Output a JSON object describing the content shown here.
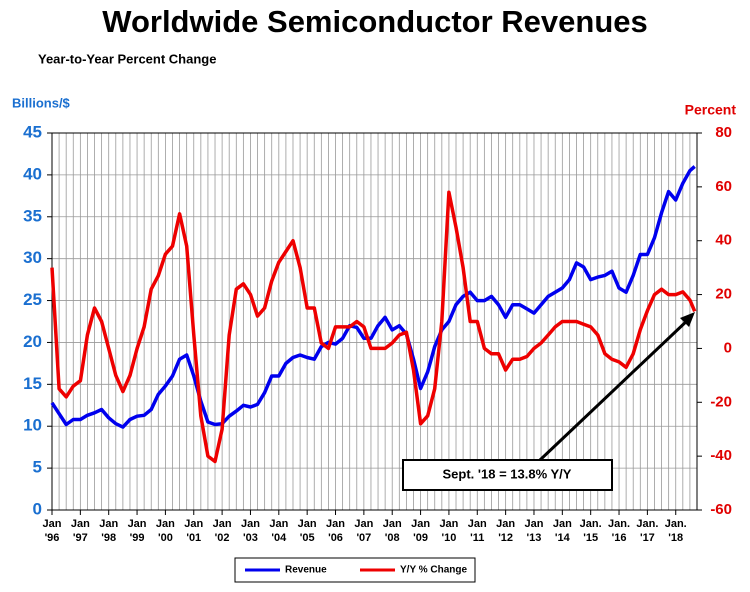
{
  "chart_data": {
    "type": "line",
    "title": "Worldwide Semiconductor Revenues",
    "subtitle": "Year-to-Year Percent Change",
    "y_label": "Billions/$",
    "y2_label": "Percent",
    "annotation": "Sept. '18 = 13.8% Y/Y",
    "x": [
      1996,
      1996.25,
      1996.5,
      1996.75,
      1997,
      1997.25,
      1997.5,
      1997.75,
      1998,
      1998.25,
      1998.5,
      1998.75,
      1999,
      1999.25,
      1999.5,
      1999.75,
      2000,
      2000.25,
      2000.5,
      2000.75,
      2001,
      2001.25,
      2001.5,
      2001.75,
      2002,
      2002.25,
      2002.5,
      2002.75,
      2003,
      2003.25,
      2003.5,
      2003.75,
      2004,
      2004.25,
      2004.5,
      2004.75,
      2005,
      2005.25,
      2005.5,
      2005.75,
      2006,
      2006.25,
      2006.5,
      2006.75,
      2007,
      2007.25,
      2007.5,
      2007.75,
      2008,
      2008.25,
      2008.5,
      2008.75,
      2009,
      2009.25,
      2009.5,
      2009.75,
      2010,
      2010.25,
      2010.5,
      2010.75,
      2011,
      2011.25,
      2011.5,
      2011.75,
      2012,
      2012.25,
      2012.5,
      2012.75,
      2013,
      2013.25,
      2013.5,
      2013.75,
      2014,
      2014.25,
      2014.5,
      2014.75,
      2015,
      2015.25,
      2015.5,
      2015.75,
      2016,
      2016.25,
      2016.5,
      2016.75,
      2017,
      2017.25,
      2017.5,
      2017.75,
      2018,
      2018.25,
      2018.5,
      2018.67
    ],
    "series": [
      {
        "name": "Revenue",
        "color": "#0000ee",
        "values": [
          12.8,
          11.5,
          10.2,
          10.8,
          10.8,
          11.3,
          11.6,
          12.0,
          11.0,
          10.3,
          9.9,
          10.8,
          11.2,
          11.3,
          12.0,
          13.8,
          14.8,
          16.0,
          18.0,
          18.5,
          16.0,
          13.0,
          10.5,
          10.2,
          10.3,
          11.2,
          11.8,
          12.5,
          12.3,
          12.6,
          14.0,
          16.0,
          16.0,
          17.5,
          18.2,
          18.5,
          18.2,
          18.0,
          19.5,
          20.0,
          19.8,
          20.5,
          22.0,
          21.8,
          20.5,
          20.5,
          22.0,
          23.0,
          21.5,
          22.0,
          21.0,
          18.0,
          14.5,
          16.5,
          19.5,
          21.5,
          22.5,
          24.5,
          25.5,
          26.0,
          25.0,
          25.0,
          25.5,
          24.5,
          23.0,
          24.5,
          24.5,
          24.0,
          23.5,
          24.5,
          25.5,
          26.0,
          26.5,
          27.5,
          29.5,
          29.0,
          27.5,
          27.8,
          28.0,
          28.5,
          26.5,
          26.0,
          28.0,
          30.5,
          30.5,
          32.5,
          35.5,
          38.0,
          37.0,
          39.0,
          40.5,
          41.0
        ]
      },
      {
        "name": "Y/Y % Change",
        "color": "#ee0000",
        "axis": "y2",
        "values": [
          30,
          -15,
          -18,
          -14,
          -12,
          5,
          15,
          10,
          0,
          -10,
          -16,
          -10,
          0,
          8,
          22,
          27,
          35,
          38,
          50,
          38,
          5,
          -25,
          -40,
          -42,
          -30,
          5,
          22,
          24,
          20,
          12,
          15,
          25,
          32,
          36,
          40,
          30,
          15,
          15,
          2,
          0,
          8,
          8,
          8,
          10,
          8,
          0,
          0,
          0,
          2,
          5,
          6,
          -8,
          -28,
          -25,
          -15,
          10,
          58,
          45,
          30,
          10,
          10,
          0,
          -2,
          -2,
          -8,
          -4,
          -4,
          -3,
          0,
          2,
          5,
          8,
          10,
          10,
          10,
          9,
          8,
          5,
          -2,
          -4,
          -5,
          -7,
          -2,
          7,
          14,
          20,
          22,
          20,
          20,
          21,
          18,
          13.8
        ]
      }
    ],
    "xlim": [
      1996,
      2018.75
    ],
    "xticks": [
      {
        "value": 1996,
        "label": "Jan '96"
      },
      {
        "value": 1997,
        "label": "Jan '97"
      },
      {
        "value": 1998,
        "label": "Jan '98"
      },
      {
        "value": 1999,
        "label": "Jan '99"
      },
      {
        "value": 2000,
        "label": "Jan '00"
      },
      {
        "value": 2001,
        "label": "Jan '01"
      },
      {
        "value": 2002,
        "label": "Jan '02"
      },
      {
        "value": 2003,
        "label": "Jan '03"
      },
      {
        "value": 2004,
        "label": "Jan '04"
      },
      {
        "value": 2005,
        "label": "Jan '05"
      },
      {
        "value": 2006,
        "label": "Jan '06"
      },
      {
        "value": 2007,
        "label": "Jan '07"
      },
      {
        "value": 2008,
        "label": "Jan '08"
      },
      {
        "value": 2009,
        "label": "Jan '09"
      },
      {
        "value": 2010,
        "label": "Jan '10"
      },
      {
        "value": 2011,
        "label": "Jan '11"
      },
      {
        "value": 2012,
        "label": "Jan '12"
      },
      {
        "value": 2013,
        "label": "Jan '13"
      },
      {
        "value": 2014,
        "label": "Jan '14"
      },
      {
        "value": 2015,
        "label": "Jan. '15"
      },
      {
        "value": 2016,
        "label": "Jan. '16"
      },
      {
        "value": 2017,
        "label": "Jan. '17"
      },
      {
        "value": 2018,
        "label": "Jan. '18"
      }
    ],
    "ylim": [
      0,
      45
    ],
    "yticks": [
      0,
      5,
      10,
      15,
      20,
      25,
      30,
      35,
      40,
      45
    ],
    "y2lim": [
      -60,
      80
    ],
    "y2ticks": [
      -60,
      -40,
      -20,
      0,
      20,
      40,
      60,
      80
    ],
    "grid": true
  }
}
